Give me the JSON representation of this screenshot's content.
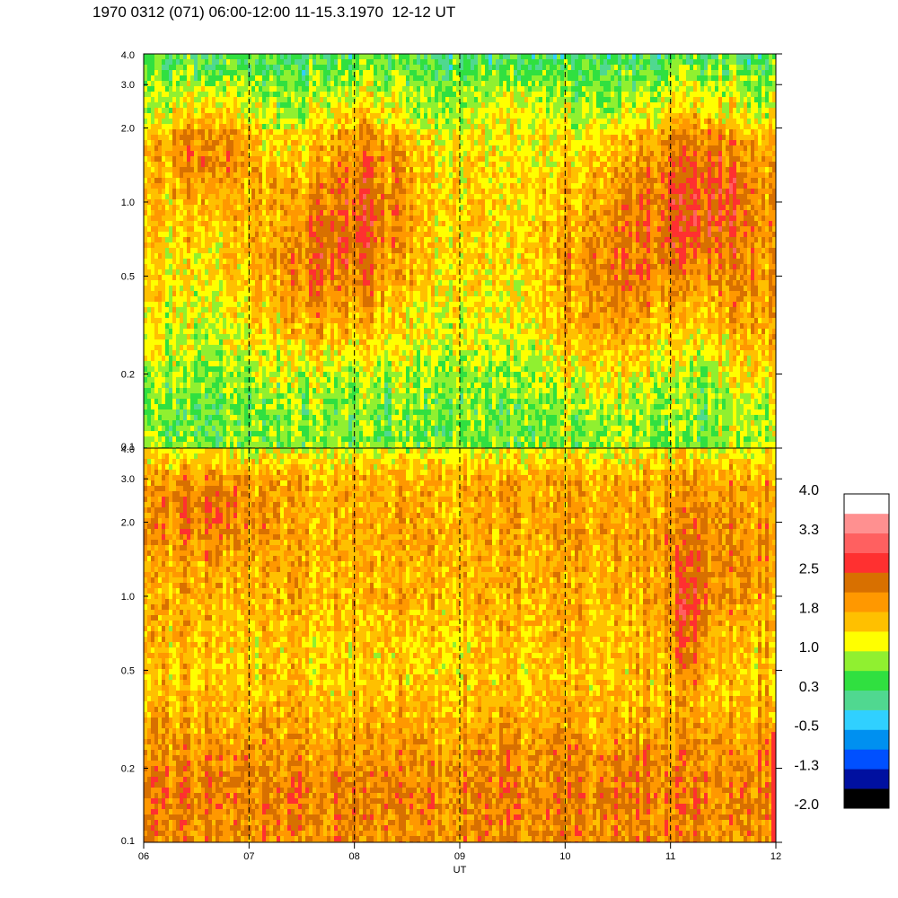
{
  "title": "1970 0312 (071) 06:00-12:00 11-15.3.1970  12-12 UT",
  "chart_data": [
    {
      "type": "heatmap",
      "panel": "top",
      "xlabel": "",
      "ylabel": "",
      "yscale": "log",
      "ylim": [
        0.1,
        4.0
      ],
      "xlim": [
        6,
        12
      ],
      "yticks": [
        "0.1",
        "0.2",
        "0.5",
        "1.0",
        "2.0",
        "3.0",
        "4.0"
      ],
      "ytick_values": [
        0.1,
        0.2,
        0.5,
        1.0,
        2.0,
        3.0,
        4.0
      ],
      "dashed_lines_x": [
        7,
        8,
        9,
        10,
        11
      ],
      "dominant_levels": "low band (0.1-0.5) mostly 0.3-1.0 (green); upper band (>2.0) green-cyan; orange/red patches near 06:30, 08:00, 11:00-11:30"
    },
    {
      "type": "heatmap",
      "panel": "bottom",
      "xlabel": "UT",
      "ylabel": "",
      "yscale": "log",
      "ylim": [
        0.1,
        4.0
      ],
      "xlim": [
        6,
        12
      ],
      "xticks": [
        "06",
        "07",
        "08",
        "09",
        "10",
        "11",
        "12"
      ],
      "xtick_values": [
        6,
        7,
        8,
        9,
        10,
        11,
        12
      ],
      "yticks": [
        "0.1",
        "0.2",
        "0.5",
        "1.0",
        "2.0",
        "3.0",
        "4.0"
      ],
      "ytick_values": [
        0.1,
        0.2,
        0.5,
        1.0,
        2.0,
        3.0,
        4.0
      ],
      "dashed_lines_x": [
        7,
        8,
        9,
        10,
        11
      ],
      "dominant_levels": "mostly 1.0-2.5 (yellow-orange), red streaks near 11:10"
    }
  ],
  "colorbar": {
    "labels": [
      "4.0",
      "3.3",
      "2.5",
      "1.8",
      "1.0",
      "0.3",
      "-0.5",
      "-1.3",
      "-2.0"
    ],
    "colors": [
      "#000000",
      "#0010a0",
      "#0050ff",
      "#0090f0",
      "#30d0ff",
      "#50d890",
      "#30e040",
      "#90f030",
      "#ffff00",
      "#ffc000",
      "#ff9800",
      "#d87000",
      "#ff3030",
      "#ff6060",
      "#ff9090",
      "#ffffff"
    ]
  },
  "palette": {
    "level_colors": [
      "#000000",
      "#0010a0",
      "#0050ff",
      "#0090f0",
      "#30d0ff",
      "#50d890",
      "#30e040",
      "#90f030",
      "#ffff00",
      "#ffc000",
      "#ff9800",
      "#d87000",
      "#ff3030",
      "#ff6060",
      "#ff9090",
      "#ffffff"
    ]
  }
}
